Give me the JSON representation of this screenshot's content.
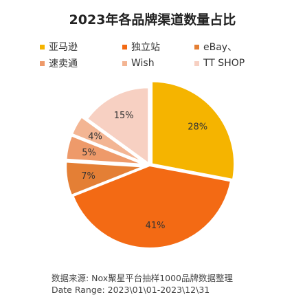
{
  "chart_data": {
    "type": "pie",
    "title": "2023年各品牌渠道数量占比",
    "categories": [
      "亚马逊",
      "独立站",
      "eBay、",
      "速卖通",
      "Wish",
      "TT SHOP"
    ],
    "values": [
      28,
      41,
      7,
      5,
      4,
      15
    ],
    "value_labels": [
      "28%",
      "41%",
      "7%",
      "5%",
      "4%",
      "15%"
    ],
    "colors": [
      "#F5B400",
      "#F36A14",
      "#E47F35",
      "#EE9A6A",
      "#F3B593",
      "#F7D0C2"
    ],
    "legend_placement": "top",
    "start_angle_deg": 0,
    "direction": "clockwise",
    "exploded": true
  },
  "footer": {
    "source": "数据来源:   Nox聚星平台抽样1000品牌数据整理",
    "date_range": "Date Range:   2023\\01\\01-2023\\12\\31"
  }
}
